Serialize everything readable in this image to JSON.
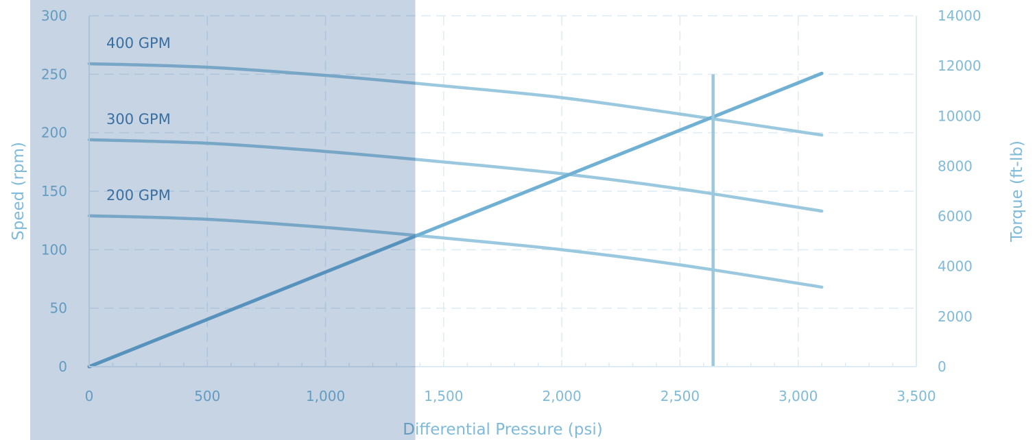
{
  "chart_data": {
    "type": "line",
    "title": "",
    "xlabel": "Differential Pressure (psi)",
    "ylabel": "Speed (rpm)",
    "y2label": "Torque (ft-lb)",
    "xlim": [
      0,
      3500
    ],
    "ylim": [
      0,
      300
    ],
    "y2lim": [
      0,
      14000
    ],
    "x_ticks": [
      "0",
      "500",
      "1,000",
      "1,500",
      "2,000",
      "2,500",
      "3,000",
      "3,500"
    ],
    "y_ticks": [
      "0",
      "50",
      "100",
      "150",
      "200",
      "250",
      "300"
    ],
    "y2_ticks": [
      "0",
      "2000",
      "4000",
      "6000",
      "8000",
      "10000",
      "12000",
      "14000"
    ],
    "grid": true,
    "series": [
      {
        "name": "400 GPM",
        "axis": "left",
        "x": [
          0,
          500,
          1000,
          1500,
          2000,
          2500,
          3100
        ],
        "values": [
          259,
          256,
          249,
          240,
          230,
          216,
          198
        ]
      },
      {
        "name": "300 GPM",
        "axis": "left",
        "x": [
          0,
          500,
          1000,
          1500,
          2000,
          2500,
          3100
        ],
        "values": [
          194,
          191,
          184,
          175,
          165,
          152,
          133
        ]
      },
      {
        "name": "200 GPM",
        "axis": "left",
        "x": [
          0,
          500,
          1000,
          1500,
          2000,
          2500,
          3100
        ],
        "values": [
          129,
          126,
          119,
          110,
          100,
          87,
          68
        ]
      },
      {
        "axis": "right",
        "x": [
          0,
          3100
        ],
        "values": [
          0,
          11700
        ]
      }
    ],
    "vertical_marker": {
      "x": 2640,
      "y_top": 250
    },
    "shaded_region": {
      "x_end": 1380
    },
    "colors": {
      "axis_text": "#7fbad8",
      "grid": "#dcebf4",
      "series_line": "#9ac8df",
      "torque_line": "#6fb0d3",
      "label_text": "#4a86b4",
      "shade": "#c7d4e4"
    }
  }
}
